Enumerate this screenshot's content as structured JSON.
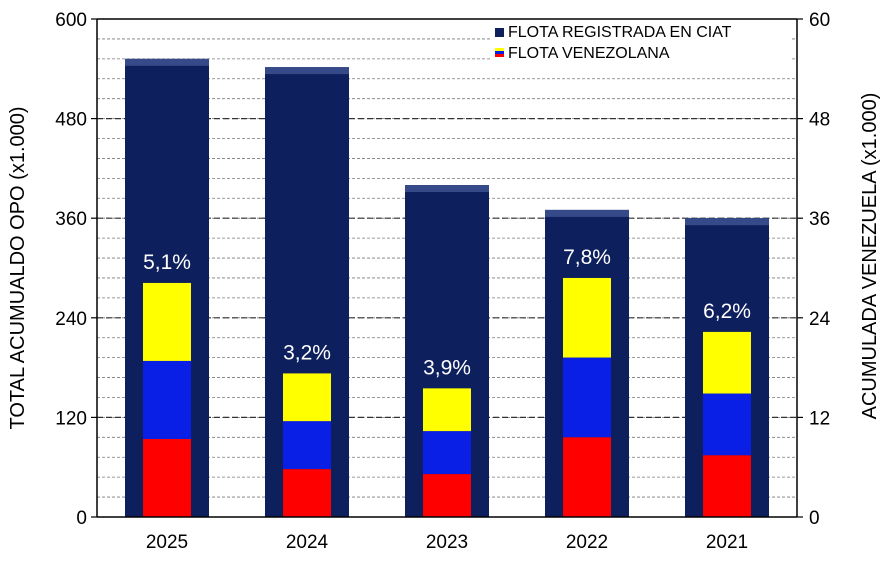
{
  "chart_data": {
    "type": "bar",
    "categories": [
      "2025",
      "2024",
      "2023",
      "2022",
      "2021"
    ],
    "series": [
      {
        "name": "FLOTA REGISTRADA EN CIAT",
        "axis": "left",
        "values": [
          552,
          542,
          400,
          370,
          360
        ]
      },
      {
        "name": "FLOTA VENEZOLANA",
        "axis": "right",
        "values": [
          28.2,
          17.3,
          15.5,
          28.8,
          22.3
        ]
      }
    ],
    "percent_labels": [
      "5,1%",
      "3,2%",
      "3,9%",
      "7,8%",
      "6,2%"
    ],
    "ylabel": "TOTAL ACUMUALDO OPO (x1.000)",
    "y2label": "ACUMULADA VENEZUELA (x1.000)",
    "ylim": [
      0,
      600
    ],
    "y2lim": [
      0,
      60
    ],
    "yticks": [
      "0",
      "120",
      "240",
      "360",
      "480",
      "600"
    ],
    "y2ticks": [
      "0",
      "12",
      "24",
      "36",
      "48",
      "60"
    ],
    "grid": true,
    "legend_position": "top-right",
    "colors": {
      "registrada": "#0d1f5c",
      "flag_yellow": "#ffff00",
      "flag_blue": "#0a1fe6",
      "flag_red": "#ff0000"
    }
  }
}
